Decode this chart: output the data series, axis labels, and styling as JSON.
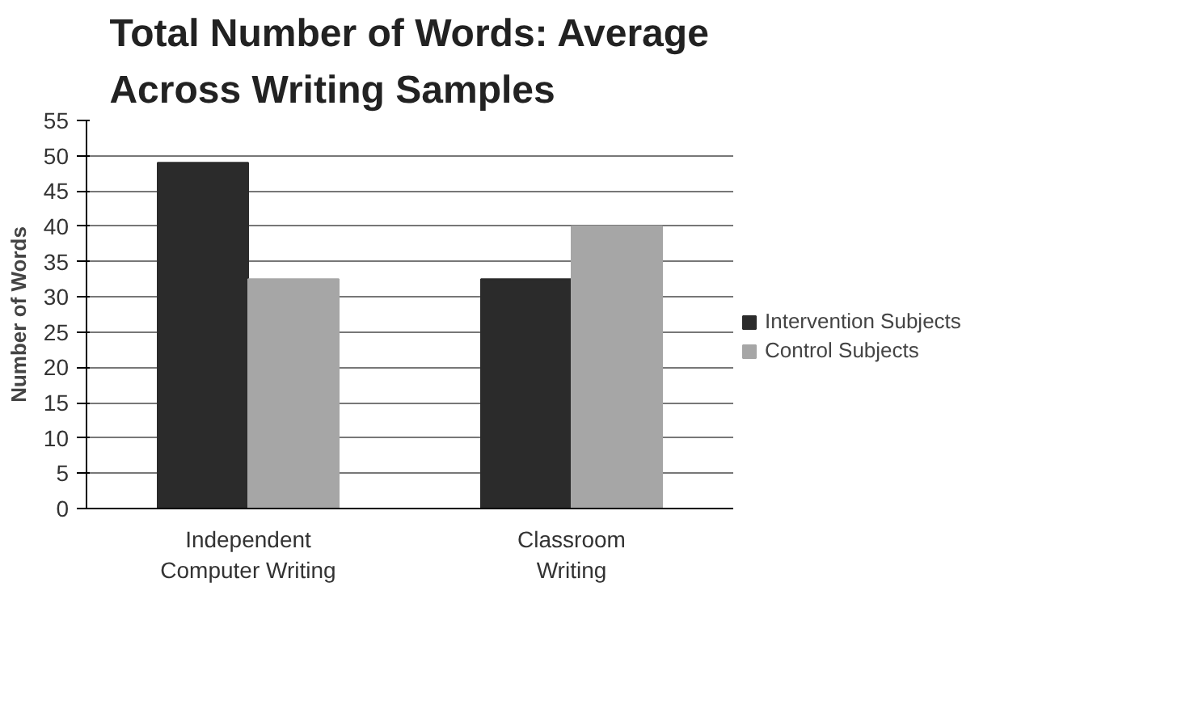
{
  "chart_data": {
    "type": "bar",
    "title": "Total Number of Words: Average Across Writing Samples",
    "ylabel": "Number of Words",
    "categories": [
      "Independent Computer Writing",
      "Classroom Writing"
    ],
    "series": [
      {
        "name": "Intervention Subjects",
        "color": "#2b2b2b",
        "values": [
          49,
          32.5
        ]
      },
      {
        "name": "Control Subjects",
        "color": "#a6a6a6",
        "values": [
          32.5,
          40
        ]
      }
    ],
    "ylim": [
      0,
      55
    ],
    "yticks": [
      0,
      5,
      10,
      15,
      20,
      25,
      30,
      35,
      40,
      45,
      50,
      55
    ],
    "grid": "y",
    "legend": "right"
  }
}
